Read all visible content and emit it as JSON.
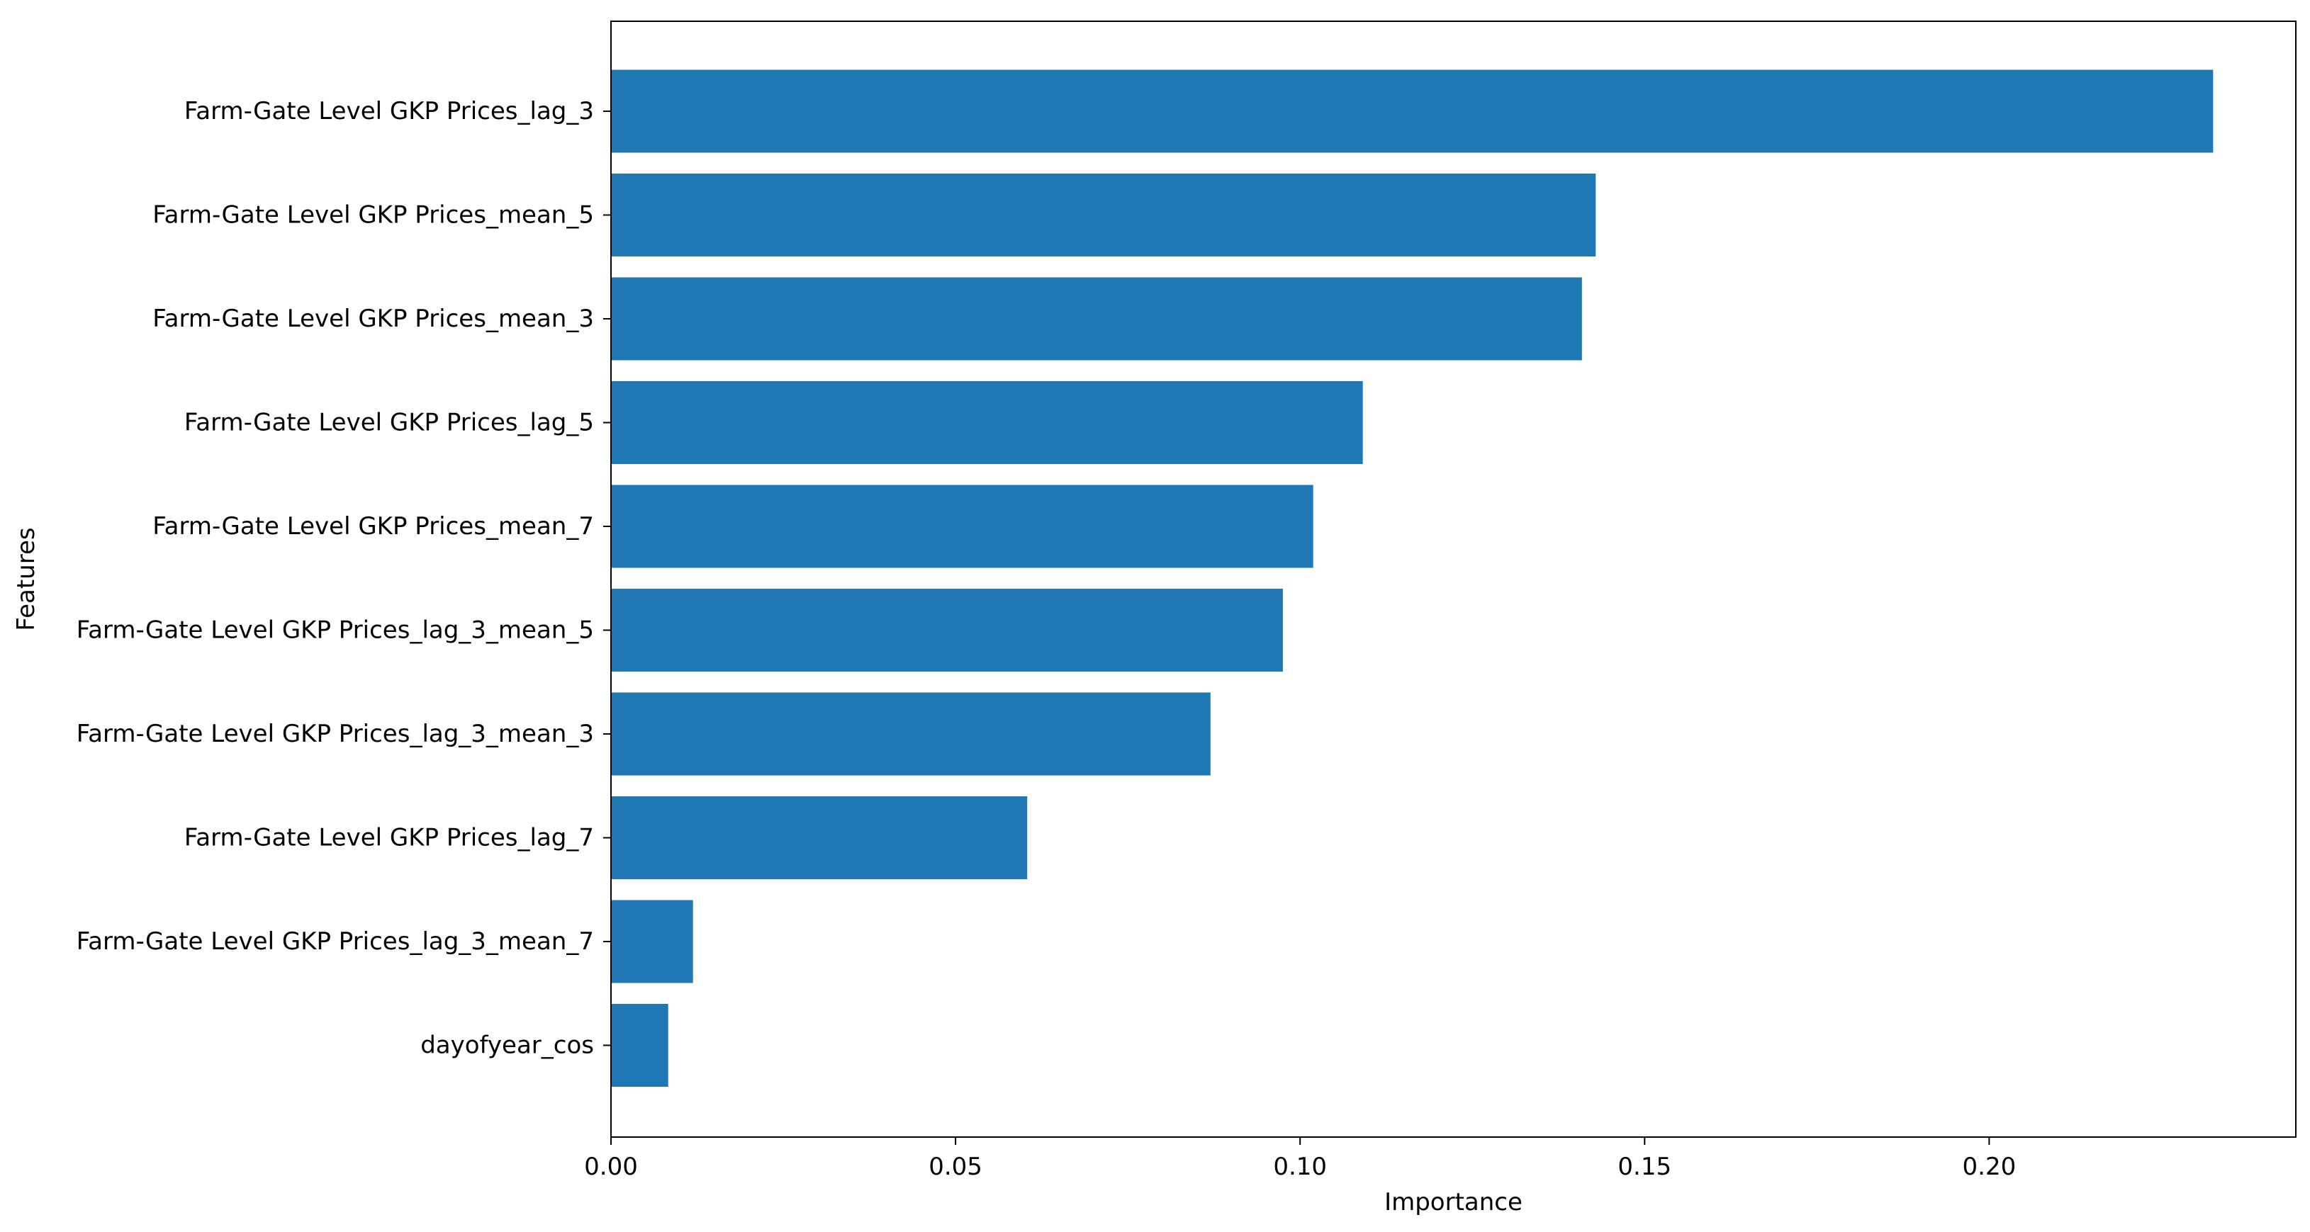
{
  "chart_data": {
    "type": "bar",
    "orientation": "horizontal",
    "categories": [
      "Farm-Gate Level GKP Prices_lag_3",
      "Farm-Gate Level GKP Prices_mean_5",
      "Farm-Gate Level GKP Prices_mean_3",
      "Farm-Gate Level GKP Prices_lag_5",
      "Farm-Gate Level GKP Prices_mean_7",
      "Farm-Gate Level GKP Prices_lag_3_mean_5",
      "Farm-Gate Level GKP Prices_lag_3_mean_3",
      "Farm-Gate Level GKP Prices_lag_7",
      "Farm-Gate Level GKP Prices_lag_3_mean_7",
      "dayofyear_cos"
    ],
    "values": [
      0.2325,
      0.1429,
      0.1409,
      0.1091,
      0.1019,
      0.0975,
      0.087,
      0.0604,
      0.0119,
      0.0083
    ],
    "title": "",
    "xlabel": "Importance",
    "ylabel": "Features",
    "xlim": [
      0,
      0.2445
    ],
    "xticks": [
      0.0,
      0.05,
      0.1,
      0.15,
      0.2
    ],
    "xtick_labels": [
      "0.00",
      "0.05",
      "0.10",
      "0.15",
      "0.20"
    ],
    "grid": false,
    "bar_color": "#1f77b4"
  }
}
